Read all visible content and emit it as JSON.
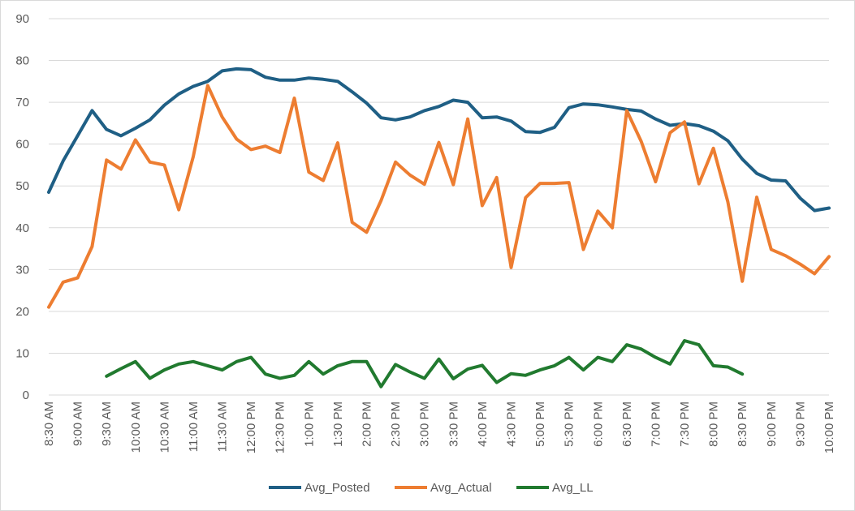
{
  "chart_data": {
    "type": "line",
    "ylim": [
      0,
      90
    ],
    "ytick_step": 10,
    "grid": true,
    "legend_position": "bottom",
    "x": [
      "8:30 AM",
      "8:45 AM",
      "9:00 AM",
      "9:15 AM",
      "9:30 AM",
      "9:45 AM",
      "10:00 AM",
      "10:15 AM",
      "10:30 AM",
      "10:45 AM",
      "11:00 AM",
      "11:15 AM",
      "11:30 AM",
      "11:45 AM",
      "12:00 PM",
      "12:15 PM",
      "12:30 PM",
      "12:45 PM",
      "1:00 PM",
      "1:15 PM",
      "1:30 PM",
      "1:45 PM",
      "2:00 PM",
      "2:15 PM",
      "2:30 PM",
      "2:45 PM",
      "3:00 PM",
      "3:15 PM",
      "3:30 PM",
      "3:45 PM",
      "4:00 PM",
      "4:15 PM",
      "4:30 PM",
      "4:45 PM",
      "5:00 PM",
      "5:15 PM",
      "5:30 PM",
      "5:45 PM",
      "6:00 PM",
      "6:15 PM",
      "6:30 PM",
      "6:45 PM",
      "7:00 PM",
      "7:15 PM",
      "7:30 PM",
      "7:45 PM",
      "8:00 PM",
      "8:15 PM",
      "8:30 PM",
      "8:45 PM",
      "9:00 PM",
      "9:15 PM",
      "9:30 PM",
      "9:45 PM",
      "10:00 PM"
    ],
    "tick_labels": [
      "8:30 AM",
      "9:00 AM",
      "9:30 AM",
      "10:00 AM",
      "10:30 AM",
      "11:00 AM",
      "11:30 AM",
      "12:00 PM",
      "12:30 PM",
      "1:00 PM",
      "1:30 PM",
      "2:00 PM",
      "2:30 PM",
      "3:00 PM",
      "3:30 PM",
      "4:00 PM",
      "4:30 PM",
      "5:00 PM",
      "5:30 PM",
      "6:00 PM",
      "6:30 PM",
      "7:00 PM",
      "7:30 PM",
      "8:00 PM",
      "8:30 PM",
      "9:00 PM",
      "9:30 PM",
      "10:00 PM"
    ],
    "series": [
      {
        "name": "Avg_Posted",
        "color": "#1f5f85",
        "values": [
          48.5,
          56,
          62,
          68,
          63.5,
          62,
          63.8,
          65.8,
          69.3,
          72,
          73.8,
          75,
          77.5,
          78,
          77.8,
          76,
          75.3,
          75.3,
          75.8,
          75.5,
          75,
          72.5,
          69.8,
          66.3,
          65.8,
          66.5,
          68,
          69,
          70.5,
          70,
          66.3,
          66.5,
          65.5,
          63,
          62.8,
          64,
          68.7,
          69.6,
          69.4,
          68.9,
          68.3,
          67.9,
          66,
          64.5,
          64.9,
          64.4,
          63.1,
          60.8,
          56.4,
          53,
          51.4,
          51.2,
          47.1,
          44.1,
          44.7
        ]
      },
      {
        "name": "Avg_Actual",
        "color": "#ed7d31",
        "values": [
          21,
          27,
          28,
          35.5,
          56.2,
          54,
          61,
          55.7,
          55,
          44.3,
          57,
          74,
          66.5,
          61.2,
          58.7,
          59.5,
          58,
          71,
          53.3,
          51.3,
          60.3,
          41.3,
          38.9,
          46.5,
          55.7,
          52.6,
          50.4,
          60.4,
          50.3,
          66,
          45.3,
          52,
          30.5,
          47.2,
          50.6,
          50.6,
          50.8,
          34.8,
          44,
          40,
          68,
          60.7,
          51,
          62.7,
          65.3,
          50.5,
          59,
          46.2,
          27.2,
          47.3,
          34.8,
          33.3,
          31.3,
          29,
          33.1
        ]
      },
      {
        "name": "Avg_LL",
        "color": "#217a2f",
        "values": [
          null,
          null,
          null,
          null,
          4.5,
          6.3,
          8,
          4,
          6,
          7.4,
          8,
          7,
          6,
          8,
          9,
          5,
          4,
          4.7,
          8,
          5,
          7,
          8,
          8,
          2,
          7.3,
          5.5,
          4,
          8.6,
          3.9,
          6.2,
          7.1,
          3,
          5.1,
          4.7,
          6,
          7,
          9,
          6,
          9,
          8,
          12,
          11,
          9,
          7.4,
          13,
          12,
          7,
          6.7,
          5,
          null,
          null,
          null,
          null,
          null,
          null
        ]
      }
    ]
  }
}
